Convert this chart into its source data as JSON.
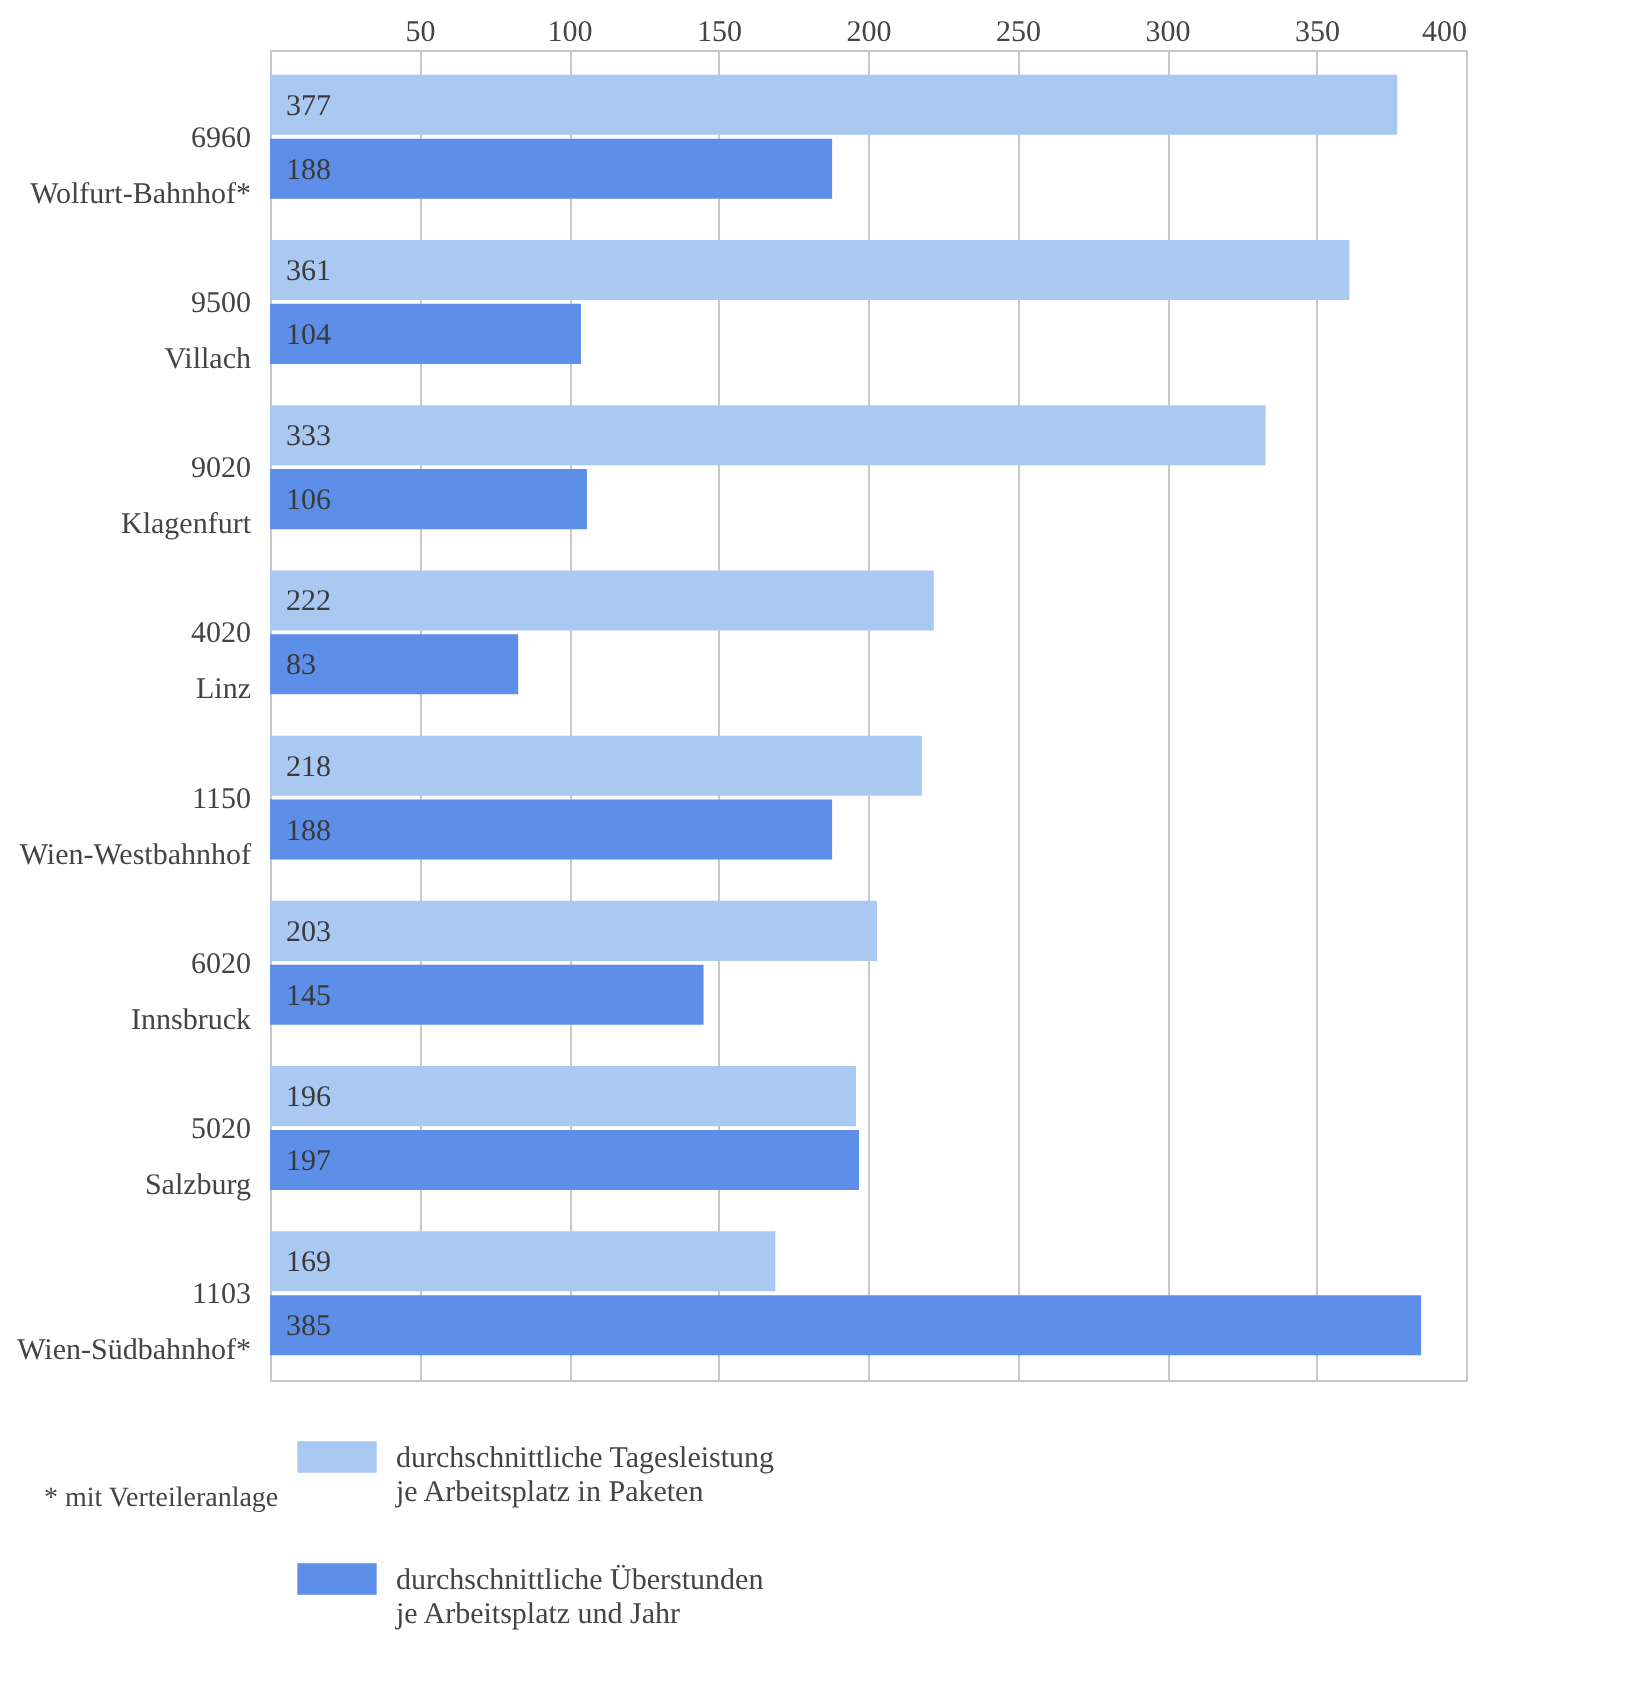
{
  "chart_data": {
    "type": "bar",
    "orientation": "horizontal",
    "categories": [
      "6960\nWolfurt-Bahnhof*",
      "9500\nVillach",
      "9020\nKlagenfurt",
      "4020\nLinz",
      "1150\nWien-Westbahnhof",
      "6020\nInnsbruck",
      "5020\nSalzburg",
      "1103\nWien-Südbahnhof*"
    ],
    "series": [
      {
        "name": "durchschnittliche Tagesleistung\nje Arbeitsplatz in Paketen",
        "color": "#a9c8f2",
        "values": [
          377,
          361,
          333,
          222,
          218,
          203,
          196,
          169
        ]
      },
      {
        "name": "durchschnittliche Überstunden\nje Arbeitsplatz und Jahr",
        "color": "#5d8fe8",
        "values": [
          188,
          104,
          106,
          83,
          188,
          145,
          197,
          385
        ]
      }
    ],
    "xlim": [
      0,
      400
    ],
    "xticks": [
      50,
      100,
      150,
      200,
      250,
      300,
      350,
      400
    ],
    "grid": "x",
    "legend": "bottom",
    "data_labels": true,
    "annotations": [
      "* mit  Verteileranlage"
    ]
  }
}
